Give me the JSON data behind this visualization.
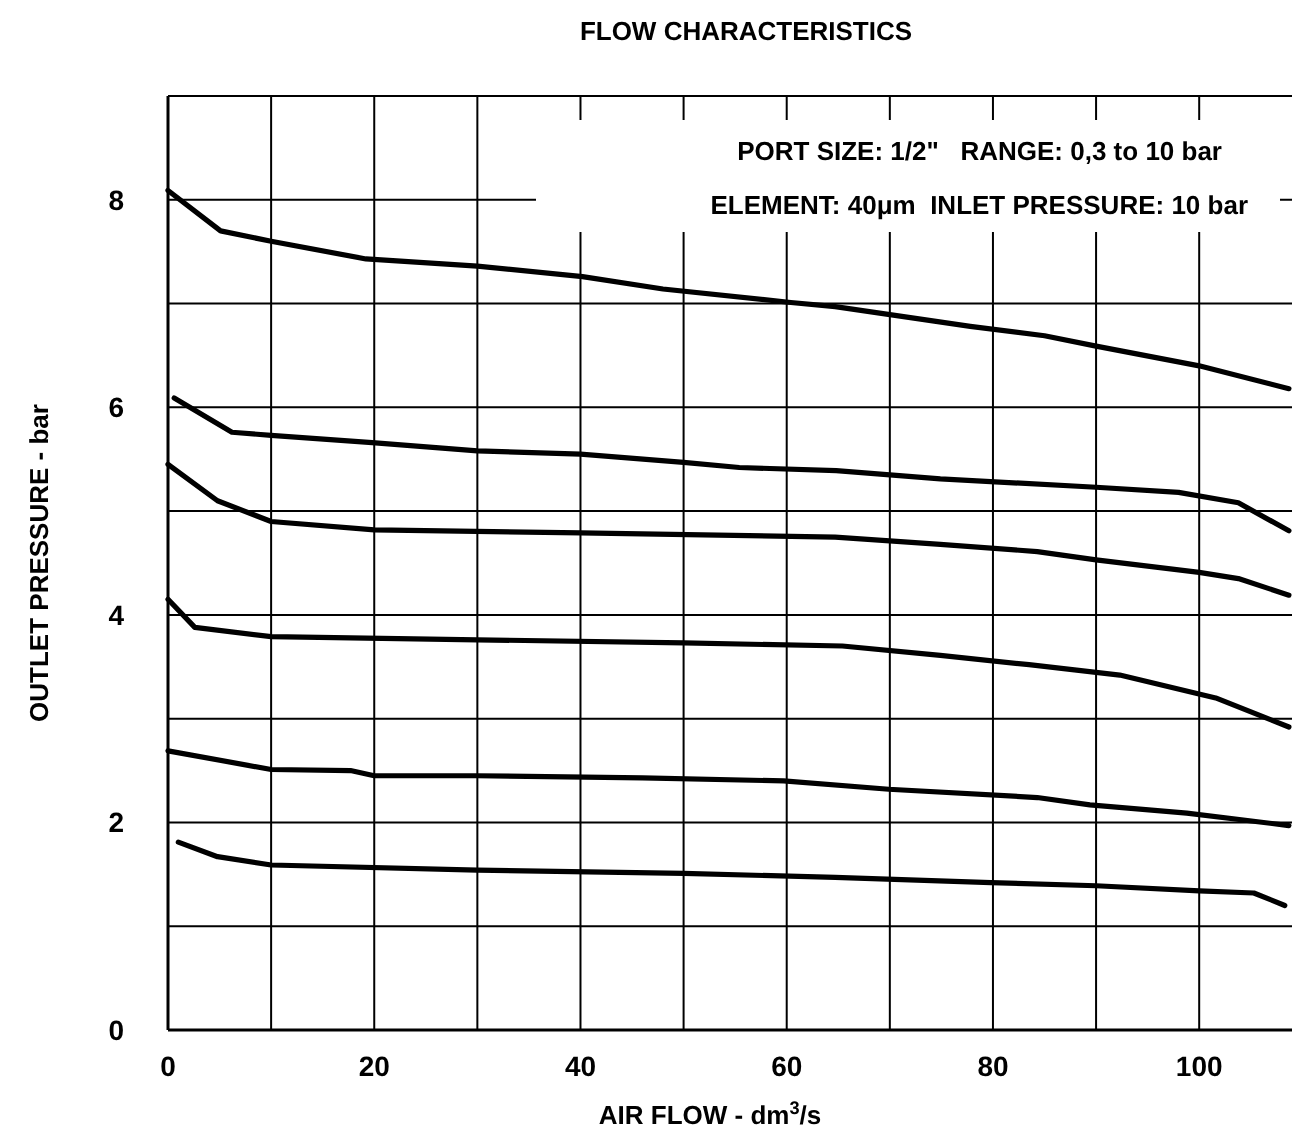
{
  "chart_data": {
    "type": "line",
    "title": "FLOW CHARACTERISTICS",
    "xlabel": "AIR FLOW - dm$^{3}$/s",
    "ylabel": "OUTLET PRESSURE - bar",
    "annotations": [
      "PORT SIZE: 1/2\"   RANGE: 0,3 to 10 bar",
      "ELEMENT: 40μm  INLET PRESSURE: 10 bar"
    ],
    "xlim": [
      0,
      109
    ],
    "ylim": [
      0,
      9
    ],
    "xticks": [
      0,
      {
        "value": 10,
        "label": null
      },
      20,
      {
        "value": 30,
        "label": null
      },
      40,
      {
        "value": 50,
        "label": null
      },
      60,
      {
        "value": 70,
        "label": null
      },
      80,
      {
        "value": 90,
        "label": null
      },
      100
    ],
    "yticks": [
      0,
      {
        "value": 1,
        "label": null
      },
      2,
      {
        "value": 3,
        "label": null
      },
      4,
      {
        "value": 5,
        "label": null
      },
      6,
      {
        "value": 7,
        "label": null
      },
      8,
      {
        "value": 9,
        "label": null
      }
    ],
    "grid": true,
    "marker": "none",
    "line_style": "solid",
    "series": [
      {
        "color": "#000000",
        "x": [
          0,
          5.1,
          10,
          19.2,
          30,
          40.2,
          48,
          60.4,
          64.7,
          77.8,
          85,
          90,
          100,
          108.7
        ],
        "values": [
          8.09,
          7.7,
          7.6,
          7.43,
          7.36,
          7.26,
          7.14,
          7.01,
          6.97,
          6.78,
          6.69,
          6.59,
          6.4,
          6.18
        ]
      },
      {
        "color": "#000000",
        "x": [
          0.6,
          6.2,
          10,
          19.8,
          30,
          40,
          50,
          55.4,
          64.8,
          74.9,
          90,
          98,
          103.8,
          108.7
        ],
        "values": [
          6.09,
          5.76,
          5.73,
          5.66,
          5.58,
          5.55,
          5.47,
          5.42,
          5.39,
          5.31,
          5.23,
          5.18,
          5.08,
          4.81
        ]
      },
      {
        "color": "#000000",
        "x": [
          0,
          4.8,
          10,
          20,
          40,
          64.7,
          74.9,
          84.3,
          90,
          100,
          103.8,
          108.7
        ],
        "values": [
          5.45,
          5.1,
          4.9,
          4.82,
          4.79,
          4.75,
          4.68,
          4.61,
          4.53,
          4.41,
          4.35,
          4.19
        ]
      },
      {
        "color": "#000000",
        "x": [
          0,
          2.6,
          10,
          30,
          50,
          65.4,
          74.9,
          83.5,
          92.3,
          101.6,
          108.7
        ],
        "values": [
          4.15,
          3.88,
          3.79,
          3.76,
          3.73,
          3.7,
          3.61,
          3.52,
          3.42,
          3.2,
          2.92
        ]
      },
      {
        "color": "#000000",
        "x": [
          0,
          10,
          17.7,
          20,
          30,
          46,
          59.7,
          69.9,
          84.3,
          89.4,
          98.8,
          108.7
        ],
        "values": [
          2.69,
          2.51,
          2.5,
          2.45,
          2.45,
          2.43,
          2.4,
          2.32,
          2.24,
          2.17,
          2.09,
          1.97
        ]
      },
      {
        "color": "#000000",
        "x": [
          1,
          4.8,
          10,
          30,
          50,
          64.7,
          79.8,
          90,
          100,
          105.3,
          108.3
        ],
        "values": [
          1.81,
          1.67,
          1.59,
          1.54,
          1.51,
          1.47,
          1.42,
          1.39,
          1.34,
          1.32,
          1.2
        ]
      }
    ]
  }
}
